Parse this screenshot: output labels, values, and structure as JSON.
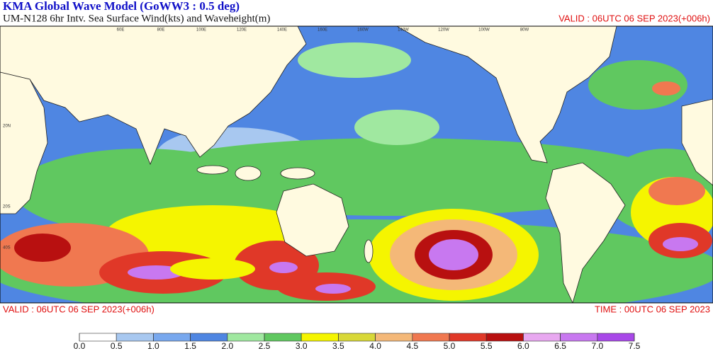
{
  "header": {
    "title": "KMA  Global Wave Model (GoWW3 : 0.5 deg)",
    "subtitle": "UM-N128  6hr Intv. Sea Surface Wind(kts) and Waveheight(m)",
    "valid_top": "VALID : 06UTC 06 SEP 2023(+006h)"
  },
  "footer": {
    "valid": "VALID : 06UTC 06 SEP 2023(+006h)",
    "time": "TIME : 00UTC 06 SEP 2023"
  },
  "map": {
    "lat_labels": [
      "20N",
      "20S",
      "40S"
    ],
    "lon_labels": [
      "60E",
      "80E",
      "100E",
      "120E",
      "140E",
      "160E",
      "160W",
      "140W",
      "120W",
      "100W",
      "80W"
    ]
  },
  "legend": {
    "colors": [
      "#ffffff",
      "#a8c8f0",
      "#78a8ee",
      "#4f86e2",
      "#a0e8a0",
      "#60c860",
      "#f5f500",
      "#d8d838",
      "#f4b878",
      "#f07850",
      "#e03828",
      "#b81010",
      "#e8a8f0",
      "#c878f0",
      "#a848e8"
    ],
    "ticks": [
      {
        "value": 0,
        "label": "0.0"
      },
      {
        "value": 0.5,
        "label": "0.5"
      },
      {
        "value": 1,
        "label": "1.0"
      },
      {
        "value": 1.5,
        "label": "1.5"
      },
      {
        "value": 2,
        "label": "2.0"
      },
      {
        "value": 2.5,
        "label": "2.5"
      },
      {
        "value": 3,
        "label": "3.0"
      },
      {
        "value": 3.5,
        "label": "3.5"
      },
      {
        "value": 4,
        "label": "4.0"
      },
      {
        "value": 4.5,
        "label": "4.5"
      },
      {
        "value": 5,
        "label": "5.0"
      },
      {
        "value": 5.5,
        "label": "5.5"
      },
      {
        "value": 6,
        "label": "6.0"
      },
      {
        "value": 6.5,
        "label": "6.5"
      },
      {
        "value": 7,
        "label": "7.0"
      },
      {
        "value": 7.5,
        "label": "7.5"
      }
    ]
  }
}
